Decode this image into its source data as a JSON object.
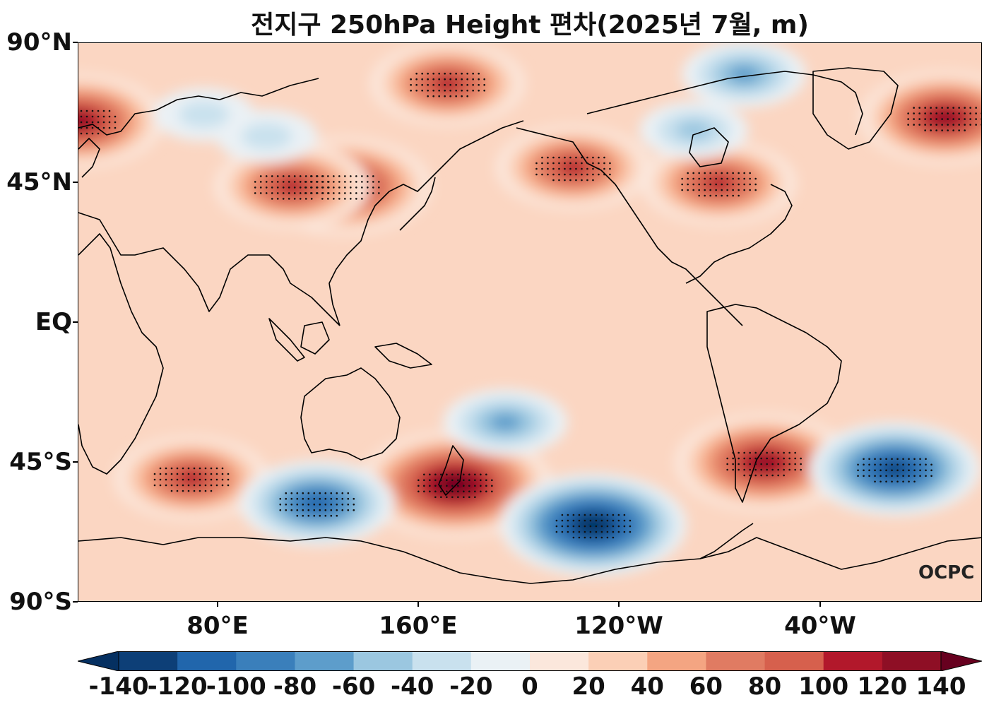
{
  "title": "전지구 250hPa Height 편차(2025년 7월, m)",
  "logo_text": "OCPC",
  "y_ticks": [
    "90°N",
    "45°N",
    "EQ",
    "45°S",
    "90°S"
  ],
  "x_ticks": [
    "80°E",
    "160°E",
    "120°W",
    "40°W"
  ],
  "colorbar": {
    "labels": [
      "-140",
      "-120",
      "-100",
      "-80",
      "-60",
      "-40",
      "-20",
      "0",
      "20",
      "40",
      "60",
      "80",
      "100",
      "120",
      "140"
    ],
    "colors": [
      "#053061",
      "#0d3f77",
      "#2166ac",
      "#3a7fbb",
      "#5d9dcb",
      "#9bc7e0",
      "#c9e1ee",
      "#eaf1f5",
      "#fbe7dc",
      "#fbcfb6",
      "#f4a582",
      "#e07b62",
      "#d6604d",
      "#b2182b",
      "#8e0f25",
      "#67001f"
    ]
  },
  "chart_data": {
    "type": "heatmap",
    "title": "전지구 250hPa Height 편차(2025년 7월, m)",
    "variable": "250hPa Height anomaly",
    "units": "m",
    "projection": "equirectangular, centered near 160°E",
    "lon_range": [
      30,
      390
    ],
    "lat_range": [
      -90,
      90
    ],
    "x_tick_labels": [
      "80°E",
      "160°E",
      "120°W",
      "40°W"
    ],
    "y_tick_labels": [
      "90°N",
      "45°N",
      "EQ",
      "45°S",
      "90°S"
    ],
    "color_levels": [
      -140,
      -120,
      -100,
      -80,
      -60,
      -40,
      -20,
      0,
      20,
      40,
      60,
      80,
      100,
      120,
      140
    ],
    "colormap": "RdBu_r",
    "stippling": "significance dots",
    "features": [
      {
        "lon": 135,
        "lat": 44,
        "anomaly": 130,
        "label": "East Asia / Japan ridge"
      },
      {
        "lon": 115,
        "lat": 44,
        "anomaly": 100,
        "label": "northern China ridge"
      },
      {
        "lon": 177,
        "lat": 77,
        "anomaly": 100,
        "label": "Arctic Siberia ridge"
      },
      {
        "lon": 227,
        "lat": 50,
        "anomaly": 100,
        "label": "Gulf of Alaska ridge"
      },
      {
        "lon": 285,
        "lat": 45,
        "anomaly": 100,
        "label": "eastern North America ridge"
      },
      {
        "lon": 30,
        "lat": 65,
        "anomaly": 120,
        "label": "Scandinavia ridge"
      },
      {
        "lon": 15,
        "lat": 66,
        "anomaly": 120,
        "label": "northern Europe ridge"
      },
      {
        "lon": 180,
        "lat": -52,
        "anomaly": 150,
        "label": "southwest Pacific ridge"
      },
      {
        "lon": 303,
        "lat": -45,
        "anomaly": 130,
        "label": "South Atlantic ridge"
      },
      {
        "lon": 75,
        "lat": -50,
        "anomaly": 100,
        "label": "southern Indian Ocean ridge"
      },
      {
        "lon": 235,
        "lat": -65,
        "anomaly": -140,
        "label": "Amundsen Sea trough"
      },
      {
        "lon": 125,
        "lat": -58,
        "anomaly": -100,
        "label": "south of Australia trough"
      },
      {
        "lon": 355,
        "lat": -47,
        "anomaly": -120,
        "label": "South Atlantic trough"
      },
      {
        "lon": 200,
        "lat": -32,
        "anomaly": -60,
        "label": "South Pacific trough"
      },
      {
        "lon": 295,
        "lat": 80,
        "anomaly": -60,
        "label": "Canadian Arctic trough"
      },
      {
        "lon": 275,
        "lat": 62,
        "anomaly": -40,
        "label": "Hudson Bay trough"
      },
      {
        "lon": 105,
        "lat": 60,
        "anomaly": -30,
        "label": "central Siberia trough"
      },
      {
        "lon": 80,
        "lat": 67,
        "anomaly": -30,
        "label": "West Siberia trough"
      }
    ]
  }
}
